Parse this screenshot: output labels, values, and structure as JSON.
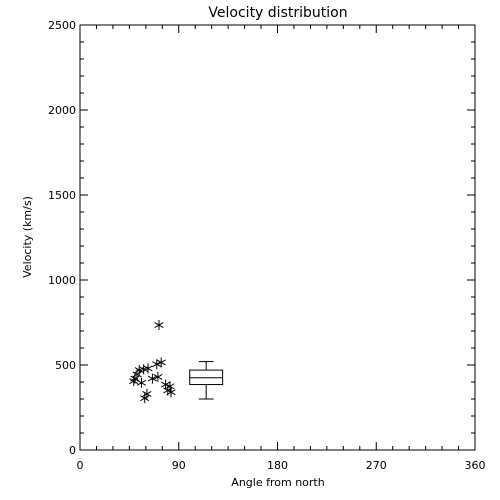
{
  "chart_data": {
    "type": "scatter",
    "title": "Velocity distribution",
    "xlabel": "Angle from north",
    "ylabel": "Velocity (km/s)",
    "xlim": [
      0,
      360
    ],
    "ylim": [
      0,
      2500
    ],
    "x_ticks": [
      0,
      90,
      180,
      270,
      360
    ],
    "y_ticks": [
      0,
      500,
      1000,
      1500,
      2000,
      2500
    ],
    "x_tick_labels": [
      "0",
      "90",
      "180",
      "270",
      "360"
    ],
    "y_tick_labels": [
      "0",
      "500",
      "1000",
      "1500",
      "2000",
      "2500"
    ],
    "grid": false,
    "marker": "asterisk",
    "points": [
      {
        "x": 72,
        "y": 735
      },
      {
        "x": 74,
        "y": 515
      },
      {
        "x": 70,
        "y": 505
      },
      {
        "x": 62,
        "y": 480
      },
      {
        "x": 58,
        "y": 475
      },
      {
        "x": 54,
        "y": 470
      },
      {
        "x": 52,
        "y": 445
      },
      {
        "x": 50,
        "y": 420
      },
      {
        "x": 49,
        "y": 405
      },
      {
        "x": 56,
        "y": 395
      },
      {
        "x": 66,
        "y": 420
      },
      {
        "x": 71,
        "y": 430
      },
      {
        "x": 78,
        "y": 385
      },
      {
        "x": 82,
        "y": 375
      },
      {
        "x": 80,
        "y": 350
      },
      {
        "x": 83,
        "y": 340
      },
      {
        "x": 61,
        "y": 330
      },
      {
        "x": 59,
        "y": 305
      }
    ],
    "boxplot": {
      "x_center": 115,
      "width": 30,
      "whisker_low": 300,
      "q1": 385,
      "median": 425,
      "q3": 470,
      "whisker_high": 520
    }
  }
}
